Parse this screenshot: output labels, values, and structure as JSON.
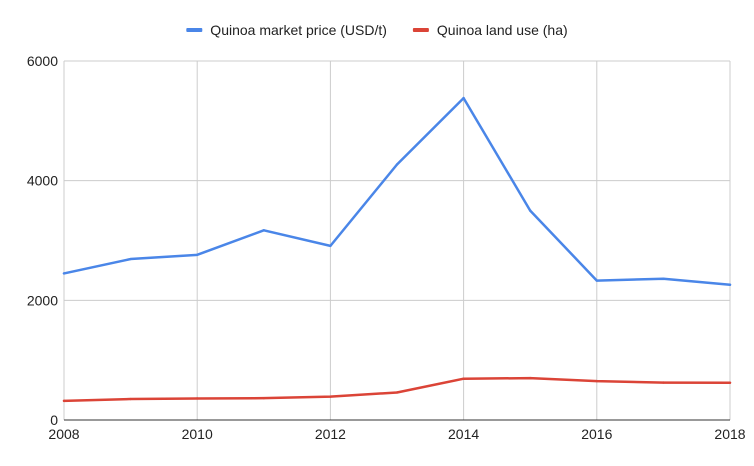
{
  "chart_data": {
    "type": "line",
    "title": "",
    "xlabel": "",
    "ylabel": "",
    "x": [
      2008,
      2009,
      2010,
      2011,
      2012,
      2013,
      2014,
      2015,
      2016,
      2017,
      2018
    ],
    "xlim": [
      2008,
      2018
    ],
    "ylim": [
      0,
      6000
    ],
    "x_ticks": [
      "2008",
      "2010",
      "2012",
      "2014",
      "2016",
      "2018"
    ],
    "y_ticks": [
      "0",
      "2000",
      "4000",
      "6000"
    ],
    "grid": true,
    "legend_position": "top",
    "series": [
      {
        "name": "Quinoa market price (USD/t)",
        "color": "#4a86e8",
        "values": [
          2450,
          2690,
          2760,
          3170,
          2910,
          4270,
          5380,
          3500,
          2330,
          2360,
          2260
        ]
      },
      {
        "name": "Quinoa land use (ha)",
        "color": "#db4437",
        "values": [
          320,
          350,
          360,
          365,
          390,
          460,
          690,
          700,
          650,
          625,
          622
        ]
      }
    ]
  }
}
